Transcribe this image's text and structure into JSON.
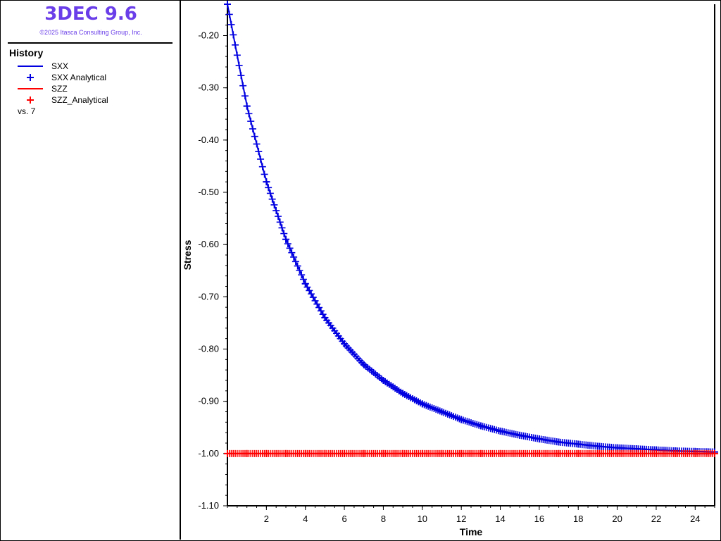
{
  "app": {
    "title": "3DEC 9.6",
    "copyright": "©2025 Itasca Consulting Group, Inc.",
    "accent_color": "#6a3ee8"
  },
  "legend": {
    "title": "History",
    "items": [
      {
        "label": "SXX",
        "symbol": "line",
        "color": "#0000e0"
      },
      {
        "label": "SXX Analytical",
        "symbol": "plus",
        "color": "#0000e0"
      },
      {
        "label": "SZZ",
        "symbol": "line",
        "color": "#ff0000"
      },
      {
        "label": "SZZ_Analytical",
        "symbol": "plus",
        "color": "#ff0000"
      }
    ],
    "vs_label": "vs. 7"
  },
  "chart_data": {
    "type": "line",
    "xlabel": "Time",
    "ylabel": "Stress",
    "xlim": [
      0,
      25
    ],
    "ylim": [
      -1.1,
      -0.14
    ],
    "xticks": [
      2,
      4,
      6,
      8,
      10,
      12,
      14,
      16,
      18,
      20,
      22,
      24
    ],
    "yticks": [
      -0.2,
      -0.3,
      -0.4,
      -0.5,
      -0.6,
      -0.7,
      -0.8,
      -0.9,
      -1.0,
      -1.1
    ],
    "xtick_labels": [
      "2",
      "4",
      "6",
      "8",
      "10",
      "12",
      "14",
      "16",
      "18",
      "20",
      "22",
      "24"
    ],
    "ytick_labels": [
      "-0.20",
      "-0.30",
      "-0.40",
      "-0.50",
      "-0.60",
      "-0.70",
      "-0.80",
      "-0.90",
      "-1.00",
      "-1.10"
    ],
    "series": [
      {
        "name": "SXX",
        "style": "line",
        "color": "#0000e0",
        "x": [
          0,
          1,
          2,
          3,
          4,
          5,
          6,
          7,
          8,
          9,
          10,
          11,
          12,
          13,
          14,
          15,
          16,
          17,
          18,
          19,
          20,
          21,
          22,
          23,
          24,
          25
        ],
        "y": [
          -0.14,
          -0.335,
          -0.48,
          -0.59,
          -0.675,
          -0.74,
          -0.79,
          -0.83,
          -0.86,
          -0.885,
          -0.905,
          -0.92,
          -0.935,
          -0.947,
          -0.957,
          -0.965,
          -0.972,
          -0.978,
          -0.982,
          -0.986,
          -0.989,
          -0.991,
          -0.993,
          -0.995,
          -0.996,
          -0.997
        ]
      },
      {
        "name": "SXX Analytical",
        "style": "plus",
        "color": "#0000e0",
        "x": [
          0,
          1,
          2,
          3,
          4,
          5,
          6,
          7,
          8,
          9,
          10,
          11,
          12,
          13,
          14,
          15,
          16,
          17,
          18,
          19,
          20,
          21,
          22,
          23,
          24,
          25
        ],
        "y": [
          -0.14,
          -0.335,
          -0.48,
          -0.59,
          -0.675,
          -0.74,
          -0.79,
          -0.83,
          -0.86,
          -0.885,
          -0.905,
          -0.92,
          -0.935,
          -0.947,
          -0.957,
          -0.965,
          -0.972,
          -0.978,
          -0.982,
          -0.986,
          -0.989,
          -0.991,
          -0.993,
          -0.995,
          -0.996,
          -0.997
        ]
      },
      {
        "name": "SZZ",
        "style": "line",
        "color": "#ff0000",
        "x": [
          0,
          25
        ],
        "y": [
          -1.0,
          -1.0
        ]
      },
      {
        "name": "SZZ_Analytical",
        "style": "plus",
        "color": "#ff0000",
        "x": [
          0,
          1,
          2,
          3,
          4,
          5,
          6,
          7,
          8,
          9,
          10,
          11,
          12,
          13,
          14,
          15,
          16,
          17,
          18,
          19,
          20,
          21,
          22,
          23,
          24,
          25
        ],
        "y": [
          -1.0,
          -1.0,
          -1.0,
          -1.0,
          -1.0,
          -1.0,
          -1.0,
          -1.0,
          -1.0,
          -1.0,
          -1.0,
          -1.0,
          -1.0,
          -1.0,
          -1.0,
          -1.0,
          -1.0,
          -1.0,
          -1.0,
          -1.0,
          -1.0,
          -1.0,
          -1.0,
          -1.0,
          -1.0,
          -1.0
        ]
      }
    ]
  }
}
